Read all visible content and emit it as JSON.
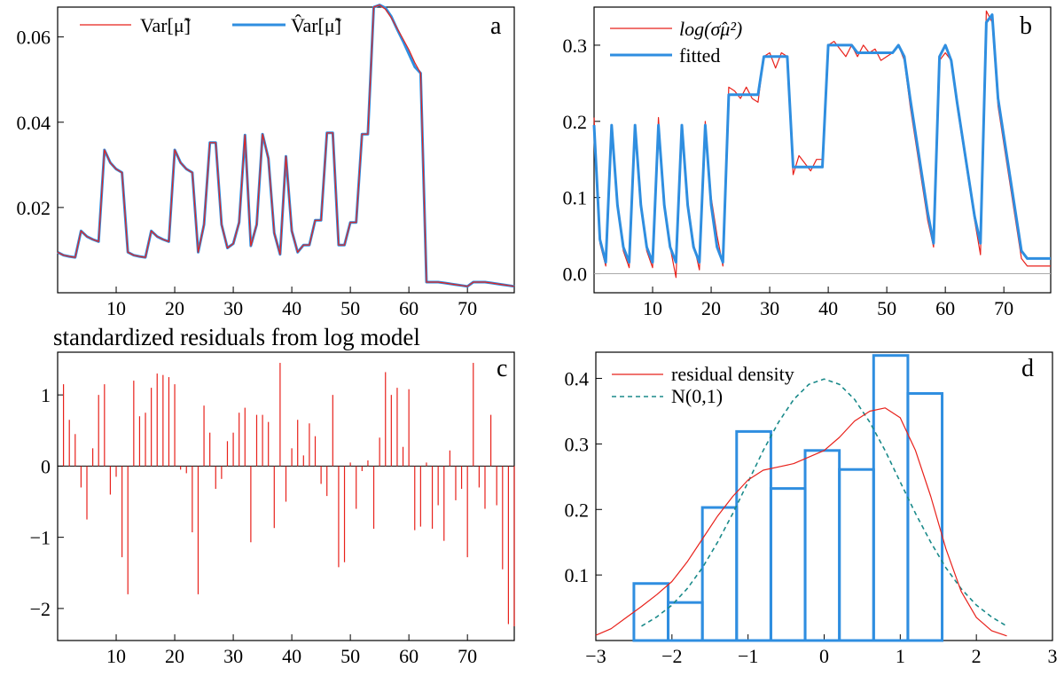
{
  "chart_data": [
    {
      "panel": "a",
      "type": "line",
      "title": "",
      "xlim": [
        0,
        78
      ],
      "ylim": [
        0.0,
        0.067
      ],
      "xticks": [
        10,
        20,
        30,
        40,
        50,
        60,
        70
      ],
      "yticks": [
        0.02,
        0.04,
        0.06
      ],
      "ytick_labels": [
        "0.02",
        "0.04",
        "0.06"
      ],
      "legend_position": "top-left",
      "series": [
        {
          "name": "Var[μ̃]",
          "color": "#e8211b",
          "x": [
            0,
            1,
            2,
            3,
            4,
            5,
            6,
            7,
            8,
            9,
            10,
            11,
            12,
            13,
            14,
            15,
            16,
            17,
            18,
            19,
            20,
            21,
            22,
            23,
            24,
            25,
            26,
            27,
            28,
            29,
            30,
            31,
            32,
            33,
            34,
            35,
            36,
            37,
            38,
            39,
            40,
            41,
            42,
            43,
            44,
            45,
            46,
            47,
            48,
            49,
            50,
            51,
            52,
            53,
            54,
            55,
            56,
            57,
            58,
            59,
            60,
            61,
            62,
            63,
            64,
            65,
            66,
            67,
            68,
            69,
            70,
            71,
            72,
            73,
            74,
            75,
            76,
            77,
            78
          ],
          "y": [
            0.0095,
            0.0088,
            0.0085,
            0.0083,
            0.0145,
            0.0132,
            0.0125,
            0.012,
            0.0335,
            0.0305,
            0.029,
            0.0282,
            0.0095,
            0.0088,
            0.0085,
            0.0083,
            0.0145,
            0.0132,
            0.0125,
            0.012,
            0.0335,
            0.0305,
            0.029,
            0.0282,
            0.0095,
            0.016,
            0.0352,
            0.0352,
            0.016,
            0.0105,
            0.0115,
            0.0165,
            0.037,
            0.011,
            0.016,
            0.0372,
            0.0315,
            0.014,
            0.009,
            0.032,
            0.0145,
            0.0095,
            0.0112,
            0.0112,
            0.017,
            0.017,
            0.0375,
            0.0375,
            0.0112,
            0.0112,
            0.0165,
            0.0165,
            0.0372,
            0.0372,
            0.067,
            0.0675,
            0.0665,
            0.0645,
            0.062,
            0.0595,
            0.057,
            0.054,
            0.0515,
            0.0025,
            0.0025,
            0.0025,
            0.0023,
            0.0021,
            0.0019,
            0.0017,
            0.0015,
            0.0025,
            0.0025,
            0.0025,
            0.0023,
            0.0021,
            0.0019,
            0.0017,
            0.0015
          ]
        },
        {
          "name": "V̂ar[μ̃]",
          "color": "#2f8ee0",
          "x": [
            0,
            1,
            2,
            3,
            4,
            5,
            6,
            7,
            8,
            9,
            10,
            11,
            12,
            13,
            14,
            15,
            16,
            17,
            18,
            19,
            20,
            21,
            22,
            23,
            24,
            25,
            26,
            27,
            28,
            29,
            30,
            31,
            32,
            33,
            34,
            35,
            36,
            37,
            38,
            39,
            40,
            41,
            42,
            43,
            44,
            45,
            46,
            47,
            48,
            49,
            50,
            51,
            52,
            53,
            54,
            55,
            56,
            57,
            58,
            59,
            60,
            61,
            62,
            63,
            64,
            65,
            66,
            67,
            68,
            69,
            70,
            71,
            72,
            73,
            74,
            75,
            76,
            77,
            78
          ],
          "y": [
            0.0095,
            0.0088,
            0.0085,
            0.0083,
            0.0145,
            0.0132,
            0.0125,
            0.012,
            0.0335,
            0.0305,
            0.029,
            0.0282,
            0.0095,
            0.0088,
            0.0085,
            0.0083,
            0.0145,
            0.0132,
            0.0125,
            0.012,
            0.0335,
            0.0305,
            0.029,
            0.0282,
            0.0095,
            0.016,
            0.0352,
            0.0352,
            0.016,
            0.0105,
            0.0115,
            0.0165,
            0.037,
            0.011,
            0.016,
            0.0372,
            0.0315,
            0.014,
            0.009,
            0.032,
            0.0145,
            0.0095,
            0.0112,
            0.0112,
            0.017,
            0.017,
            0.0375,
            0.0375,
            0.0112,
            0.0112,
            0.0165,
            0.0165,
            0.0372,
            0.0372,
            0.067,
            0.0675,
            0.0668,
            0.0648,
            0.0618,
            0.059,
            0.056,
            0.053,
            0.0515,
            0.0025,
            0.0025,
            0.0025,
            0.0023,
            0.0021,
            0.0019,
            0.0017,
            0.0015,
            0.0025,
            0.0025,
            0.0025,
            0.0023,
            0.0021,
            0.0019,
            0.0017,
            0.0015
          ]
        }
      ]
    },
    {
      "panel": "b",
      "type": "line",
      "title": "",
      "xlim": [
        0,
        78
      ],
      "ylim": [
        -0.025,
        0.35
      ],
      "xticks": [
        10,
        20,
        30,
        40,
        50,
        60,
        70
      ],
      "yticks": [
        0.0,
        0.1,
        0.2,
        0.3
      ],
      "ytick_labels": [
        "0.0",
        "0.1",
        "0.2",
        "0.3"
      ],
      "hline_at_zero": true,
      "legend_position": "top-left",
      "series": [
        {
          "name": "log(σ̂μ²)",
          "color": "#e8211b",
          "x": [
            0,
            1,
            2,
            3,
            4,
            5,
            6,
            7,
            8,
            9,
            10,
            11,
            12,
            13,
            14,
            15,
            16,
            17,
            18,
            19,
            20,
            21,
            22,
            23,
            24,
            25,
            26,
            27,
            28,
            29,
            30,
            31,
            32,
            33,
            34,
            35,
            36,
            37,
            38,
            39,
            40,
            41,
            42,
            43,
            44,
            45,
            46,
            47,
            48,
            49,
            50,
            51,
            52,
            53,
            54,
            55,
            56,
            57,
            58,
            59,
            60,
            61,
            62,
            63,
            64,
            65,
            66,
            67,
            68,
            69,
            70,
            71,
            72,
            73,
            74,
            75,
            76,
            77,
            78
          ],
          "y": [
            0.205,
            0.04,
            0.01,
            0.195,
            0.09,
            0.03,
            0.008,
            0.195,
            0.09,
            0.03,
            0.008,
            0.205,
            0.09,
            0.035,
            -0.005,
            0.195,
            0.095,
            0.04,
            0.005,
            0.2,
            0.1,
            0.05,
            0.01,
            0.245,
            0.24,
            0.23,
            0.245,
            0.23,
            0.225,
            0.285,
            0.29,
            0.27,
            0.29,
            0.285,
            0.13,
            0.155,
            0.145,
            0.135,
            0.15,
            0.15,
            0.3,
            0.305,
            0.295,
            0.285,
            0.3,
            0.285,
            0.3,
            0.29,
            0.295,
            0.28,
            0.285,
            0.29,
            0.3,
            0.28,
            0.22,
            0.17,
            0.12,
            0.07,
            0.035,
            0.28,
            0.29,
            0.28,
            0.22,
            0.17,
            0.12,
            0.07,
            0.025,
            0.345,
            0.33,
            0.22,
            0.17,
            0.12,
            0.07,
            0.02,
            0.01,
            0.01,
            0.01,
            0.01,
            0.01
          ]
        },
        {
          "name": "fitted",
          "color": "#2f8ee0",
          "x": [
            0,
            1,
            2,
            3,
            4,
            5,
            6,
            7,
            8,
            9,
            10,
            11,
            12,
            13,
            14,
            15,
            16,
            17,
            18,
            19,
            20,
            21,
            22,
            23,
            24,
            25,
            26,
            27,
            28,
            29,
            30,
            31,
            32,
            33,
            34,
            35,
            36,
            37,
            38,
            39,
            40,
            41,
            42,
            43,
            44,
            45,
            46,
            47,
            48,
            49,
            50,
            51,
            52,
            53,
            54,
            55,
            56,
            57,
            58,
            59,
            60,
            61,
            62,
            63,
            64,
            65,
            66,
            67,
            68,
            69,
            70,
            71,
            72,
            73,
            74,
            75,
            76,
            77,
            78
          ],
          "y": [
            0.195,
            0.045,
            0.015,
            0.195,
            0.09,
            0.035,
            0.015,
            0.195,
            0.09,
            0.035,
            0.015,
            0.195,
            0.09,
            0.035,
            0.015,
            0.195,
            0.09,
            0.035,
            0.015,
            0.195,
            0.09,
            0.035,
            0.015,
            0.235,
            0.235,
            0.235,
            0.235,
            0.235,
            0.235,
            0.285,
            0.285,
            0.285,
            0.285,
            0.285,
            0.14,
            0.14,
            0.14,
            0.14,
            0.14,
            0.14,
            0.3,
            0.3,
            0.3,
            0.3,
            0.3,
            0.29,
            0.29,
            0.29,
            0.29,
            0.29,
            0.29,
            0.29,
            0.3,
            0.285,
            0.23,
            0.18,
            0.13,
            0.08,
            0.04,
            0.285,
            0.3,
            0.28,
            0.225,
            0.175,
            0.125,
            0.075,
            0.04,
            0.33,
            0.34,
            0.23,
            0.18,
            0.13,
            0.08,
            0.03,
            0.02,
            0.02,
            0.02,
            0.02,
            0.02
          ]
        }
      ]
    },
    {
      "panel": "c",
      "type": "bar",
      "title": "standardized residuals from log model",
      "xlim": [
        0,
        78
      ],
      "ylim": [
        -2.45,
        1.6
      ],
      "xticks": [
        10,
        20,
        30,
        40,
        50,
        60,
        70
      ],
      "yticks": [
        -2,
        -1,
        0,
        1
      ],
      "ytick_labels": [
        "−2",
        "−1",
        "0",
        "1"
      ],
      "color": "#e8211b",
      "x": [
        1,
        2,
        3,
        4,
        5,
        6,
        7,
        8,
        9,
        10,
        11,
        12,
        13,
        14,
        15,
        16,
        17,
        18,
        19,
        20,
        21,
        22,
        23,
        24,
        25,
        26,
        27,
        28,
        29,
        30,
        31,
        32,
        33,
        34,
        35,
        36,
        37,
        38,
        39,
        40,
        41,
        42,
        43,
        44,
        45,
        46,
        47,
        48,
        49,
        50,
        51,
        52,
        53,
        54,
        55,
        56,
        57,
        58,
        59,
        60,
        61,
        62,
        63,
        64,
        65,
        66,
        67,
        68,
        69,
        70,
        71,
        72,
        73,
        74,
        75,
        76,
        77,
        78
      ],
      "values": [
        1.15,
        0.65,
        0.45,
        -0.3,
        -0.75,
        0.25,
        1.0,
        1.15,
        -0.4,
        -0.15,
        -1.28,
        -1.8,
        1.2,
        0.7,
        0.75,
        1.1,
        1.3,
        1.28,
        1.25,
        1.15,
        -0.05,
        -0.1,
        -0.93,
        -1.8,
        0.85,
        0.47,
        -0.32,
        -0.18,
        0.35,
        0.47,
        0.75,
        0.82,
        -1.07,
        0.72,
        0.72,
        0.62,
        -0.87,
        1.45,
        -0.5,
        0.25,
        0.65,
        0.15,
        0.6,
        0.42,
        -0.25,
        -0.42,
        1.0,
        -1.42,
        -1.35,
        0.05,
        -0.6,
        -0.07,
        0.08,
        -0.88,
        0.4,
        1.32,
        1.0,
        1.1,
        0.27,
        1.08,
        -0.9,
        -0.85,
        0.05,
        -0.88,
        -0.55,
        -1.05,
        0.22,
        -0.48,
        -0.32,
        -1.28,
        1.45,
        -0.3,
        -0.6,
        0.72,
        -0.55,
        -1.45,
        -2.22,
        -2.25
      ]
    },
    {
      "panel": "d",
      "type": "histogram",
      "title": "",
      "xlim": [
        -3,
        3
      ],
      "ylim": [
        0.0,
        0.44
      ],
      "xticks": [
        -3,
        -2,
        -1,
        0,
        1,
        2,
        3
      ],
      "xtick_labels": [
        "−3",
        "−2",
        "−1",
        "0",
        "1",
        "2",
        "3"
      ],
      "yticks": [
        0.1,
        0.2,
        0.3,
        0.4
      ],
      "ytick_labels": [
        "0.1",
        "0.2",
        "0.3",
        "0.4"
      ],
      "legend_position": "top-left",
      "histogram": {
        "color": "#2f8ee0",
        "bin_edges": [
          -2.5,
          -2.05,
          -1.6,
          -1.15,
          -0.7,
          -0.25,
          0.2,
          0.65,
          1.1,
          1.55
        ],
        "heights": [
          0.087,
          0.058,
          0.203,
          0.319,
          0.232,
          0.29,
          0.261,
          0.435,
          0.377
        ]
      },
      "series": [
        {
          "name": "residual density",
          "color": "#e8211b",
          "style": "solid",
          "x": [
            -3.0,
            -2.8,
            -2.6,
            -2.4,
            -2.2,
            -2.0,
            -1.8,
            -1.6,
            -1.4,
            -1.2,
            -1.0,
            -0.8,
            -0.6,
            -0.4,
            -0.2,
            0.0,
            0.2,
            0.4,
            0.6,
            0.8,
            1.0,
            1.2,
            1.4,
            1.6,
            1.8,
            2.0,
            2.2,
            2.4
          ],
          "y": [
            0.008,
            0.018,
            0.035,
            0.052,
            0.07,
            0.09,
            0.12,
            0.155,
            0.19,
            0.22,
            0.245,
            0.26,
            0.265,
            0.27,
            0.28,
            0.29,
            0.31,
            0.335,
            0.35,
            0.355,
            0.34,
            0.29,
            0.22,
            0.14,
            0.075,
            0.035,
            0.015,
            0.007
          ]
        },
        {
          "name": "N(0,1)",
          "color": "#1a8a8a",
          "style": "dashed",
          "x": [
            -2.4,
            -2.2,
            -2.0,
            -1.8,
            -1.6,
            -1.4,
            -1.2,
            -1.0,
            -0.8,
            -0.6,
            -0.4,
            -0.2,
            0.0,
            0.2,
            0.4,
            0.6,
            0.8,
            1.0,
            1.2,
            1.4,
            1.6,
            1.8,
            2.0,
            2.2,
            2.4
          ],
          "y": [
            0.022,
            0.036,
            0.054,
            0.079,
            0.111,
            0.15,
            0.194,
            0.242,
            0.29,
            0.333,
            0.368,
            0.391,
            0.399,
            0.391,
            0.368,
            0.333,
            0.29,
            0.242,
            0.194,
            0.15,
            0.111,
            0.079,
            0.054,
            0.036,
            0.022
          ]
        }
      ]
    }
  ],
  "panel_letters": {
    "a": "a",
    "b": "b",
    "c": "c",
    "d": "d"
  },
  "legend": {
    "a": {
      "item1": "Var[μ̃]",
      "item2": "V̂ar[μ̃]"
    },
    "b": {
      "item1": "log(σ̂μ²)",
      "item2": "fitted"
    },
    "d": {
      "item1": "residual density",
      "item2": "N(0,1)"
    }
  },
  "colors": {
    "red": "#e8211b",
    "blue": "#2f8ee0",
    "teal": "#1a8a8a",
    "zero_line": "#aaaaaa"
  }
}
